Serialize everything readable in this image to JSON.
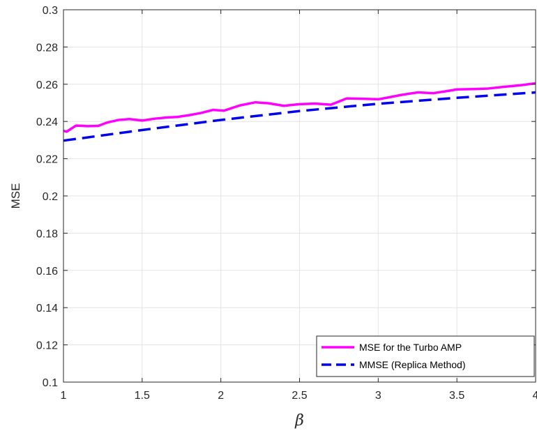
{
  "chart_data": {
    "type": "line",
    "xlabel": "β",
    "ylabel": "MSE",
    "xlim": [
      1,
      4
    ],
    "ylim": [
      0.1,
      0.3
    ],
    "xticks": [
      "1",
      "1.5",
      "2",
      "2.5",
      "3",
      "3.5",
      "4"
    ],
    "yticks": [
      "0.1",
      "0.12",
      "0.14",
      "0.16",
      "0.18",
      "0.2",
      "0.22",
      "0.24",
      "0.26",
      "0.28",
      "0.3"
    ],
    "grid": true,
    "legend_position": "bottom-right",
    "series": [
      {
        "name": "MSE for the Turbo AMP",
        "color": "#ff00ff",
        "style": "solid",
        "x": [
          1.0,
          1.02,
          1.08,
          1.15,
          1.22,
          1.28,
          1.35,
          1.42,
          1.5,
          1.58,
          1.65,
          1.72,
          1.8,
          1.87,
          1.95,
          2.02,
          2.12,
          2.22,
          2.3,
          2.4,
          2.5,
          2.6,
          2.7,
          2.8,
          2.9,
          3.0,
          3.07,
          3.15,
          3.25,
          3.35,
          3.42,
          3.5,
          3.6,
          3.7,
          3.8,
          3.9,
          4.0
        ],
        "y": [
          0.235,
          0.2345,
          0.2378,
          0.2375,
          0.2376,
          0.2395,
          0.2408,
          0.2413,
          0.2405,
          0.2415,
          0.2421,
          0.2424,
          0.2434,
          0.2445,
          0.2462,
          0.2458,
          0.2486,
          0.2503,
          0.2498,
          0.2484,
          0.2493,
          0.2496,
          0.249,
          0.2524,
          0.2522,
          0.2519,
          0.253,
          0.2543,
          0.2556,
          0.2552,
          0.2561,
          0.2572,
          0.2574,
          0.2577,
          0.2586,
          0.2594,
          0.2605
        ]
      },
      {
        "name": "MMSE (Replica Method)",
        "color": "#0000ee",
        "style": "dashed",
        "x": [
          1.0,
          1.5,
          2.0,
          2.5,
          3.0,
          3.5,
          4.0
        ],
        "y": [
          0.2297,
          0.2354,
          0.2408,
          0.2456,
          0.2495,
          0.2527,
          0.2556
        ]
      }
    ]
  }
}
